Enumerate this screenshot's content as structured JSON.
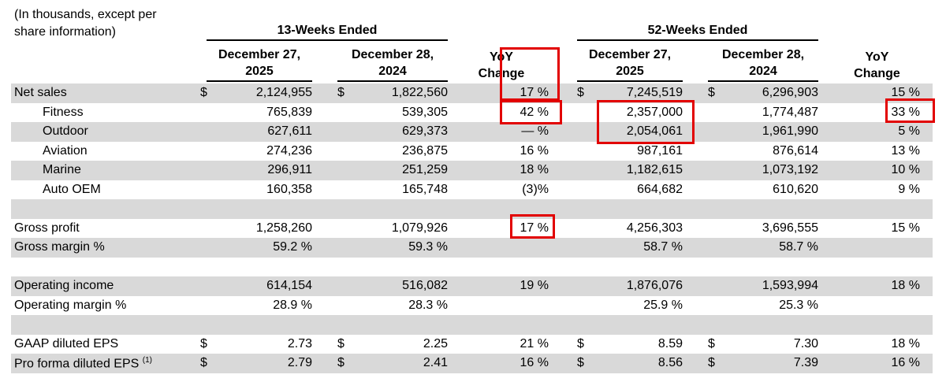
{
  "caption": {
    "line1": "(In thousands, except per",
    "line2": "share information)"
  },
  "header": {
    "group1": "13-Weeks Ended",
    "group2": "52-Weeks Ended",
    "date_2025_l1": "December 27,",
    "date_2025_l2": "2025",
    "date_2024_l1": "December 28,",
    "date_2024_l2": "2024",
    "yoy_l1": "YoY",
    "yoy_l2": "Change"
  },
  "table": {
    "rows": [
      {
        "label": "Net sales",
        "indent": false,
        "shaded": true,
        "d1": "$",
        "v1": "2,124,955",
        "d2": "$",
        "v2": "1,822,560",
        "yoy1": "17 %",
        "d3": "$",
        "v3": "7,245,519",
        "d4": "$",
        "v4": "6,296,903",
        "yoy2": "15 %"
      },
      {
        "label": "Fitness",
        "indent": true,
        "shaded": false,
        "v1": "765,839",
        "v2": "539,305",
        "yoy1": "42 %",
        "v3": "2,357,000",
        "v4": "1,774,487",
        "yoy2": "33 %"
      },
      {
        "label": "Outdoor",
        "indent": true,
        "shaded": true,
        "v1": "627,611",
        "v2": "629,373",
        "yoy1": "— %",
        "v3": "2,054,061",
        "v4": "1,961,990",
        "yoy2": "5 %"
      },
      {
        "label": "Aviation",
        "indent": true,
        "shaded": false,
        "v1": "274,236",
        "v2": "236,875",
        "yoy1": "16 %",
        "v3": "987,161",
        "v4": "876,614",
        "yoy2": "13 %"
      },
      {
        "label": "Marine",
        "indent": true,
        "shaded": true,
        "v1": "296,911",
        "v2": "251,259",
        "yoy1": "18 %",
        "v3": "1,182,615",
        "v4": "1,073,192",
        "yoy2": "10 %"
      },
      {
        "label": "Auto OEM",
        "indent": true,
        "shaded": false,
        "v1": "160,358",
        "v2": "165,748",
        "yoy1": "(3)%",
        "v3": "664,682",
        "v4": "610,620",
        "yoy2": "9 %"
      },
      {
        "label": "",
        "indent": false,
        "shaded": true
      },
      {
        "label": "Gross profit",
        "indent": false,
        "shaded": false,
        "v1": "1,258,260",
        "v2": "1,079,926",
        "yoy1": "17 %",
        "v3": "4,256,303",
        "v4": "3,696,555",
        "yoy2": "15 %"
      },
      {
        "label": "Gross margin %",
        "indent": false,
        "shaded": true,
        "v1": "59.2 %",
        "v2": "59.3 %",
        "v3": "58.7 %",
        "v4": "58.7 %"
      },
      {
        "label": "",
        "indent": false,
        "shaded": false
      },
      {
        "label": "Operating income",
        "indent": false,
        "shaded": true,
        "v1": "614,154",
        "v2": "516,082",
        "yoy1": "19 %",
        "v3": "1,876,076",
        "v4": "1,593,994",
        "yoy2": "18 %"
      },
      {
        "label": "Operating margin %",
        "indent": false,
        "shaded": false,
        "v1": "28.9 %",
        "v2": "28.3 %",
        "v3": "25.9 %",
        "v4": "25.3 %"
      },
      {
        "label": "",
        "indent": false,
        "shaded": true
      },
      {
        "label": "GAAP diluted EPS",
        "indent": false,
        "shaded": false,
        "d1": "$",
        "v1": "2.73",
        "d2": "$",
        "v2": "2.25",
        "yoy1": "21 %",
        "d3": "$",
        "v3": "8.59",
        "d4": "$",
        "v4": "7.30",
        "yoy2": "18 %"
      },
      {
        "label": "Pro forma diluted EPS",
        "sup": "(1)",
        "indent": false,
        "shaded": true,
        "d1": "$",
        "v1": "2.79",
        "d2": "$",
        "v2": "2.41",
        "yoy1": "16 %",
        "d3": "$",
        "v3": "8.56",
        "d4": "$",
        "v4": "7.39",
        "yoy2": "16 %"
      }
    ]
  },
  "annotations": {
    "highlight_color": "#e20000",
    "highlighted_values": [
      "Net sales 13-week YoY change 17 %",
      "Fitness 13-week YoY change 42 %",
      "Fitness 52-week net sales 2,357,000",
      "Outdoor 52-week net sales 2,054,061",
      "Fitness 52-week YoY change 33 %",
      "Gross profit 13-week YoY change 17 %"
    ]
  }
}
